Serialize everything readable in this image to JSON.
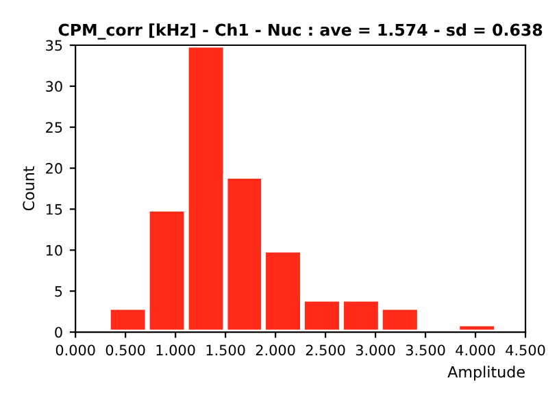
{
  "chart_data": {
    "type": "histogram",
    "title": "CPM_corr [kHz] - Ch1 - Nuc : ave = 1.574 - sd = 0.638",
    "xlabel": "Amplitude",
    "ylabel": "Count",
    "bins": [
      0.33,
      0.72,
      1.11,
      1.5,
      1.88,
      2.27,
      2.66,
      3.05,
      3.44,
      3.82,
      4.21
    ],
    "values": [
      3,
      15,
      35,
      19,
      10,
      4,
      4,
      3,
      0,
      1
    ],
    "color": "#ff2a17",
    "xlim": [
      0,
      4.5
    ],
    "ylim": [
      0,
      35
    ],
    "xticks": [
      {
        "value": 0,
        "label": "0.000"
      },
      {
        "value": 0.5,
        "label": "0.500"
      },
      {
        "value": 1,
        "label": "1.000"
      },
      {
        "value": 1.5,
        "label": "1.500"
      },
      {
        "value": 2,
        "label": "2.000"
      },
      {
        "value": 2.5,
        "label": "2.500"
      },
      {
        "value": 3,
        "label": "3.000"
      },
      {
        "value": 3.5,
        "label": "3.500"
      },
      {
        "value": 4,
        "label": "4.000"
      },
      {
        "value": 4.5,
        "label": "4.500"
      }
    ],
    "yticks": [
      0,
      5,
      10,
      15,
      20,
      25,
      30,
      35
    ],
    "grid": false,
    "legend": false
  }
}
